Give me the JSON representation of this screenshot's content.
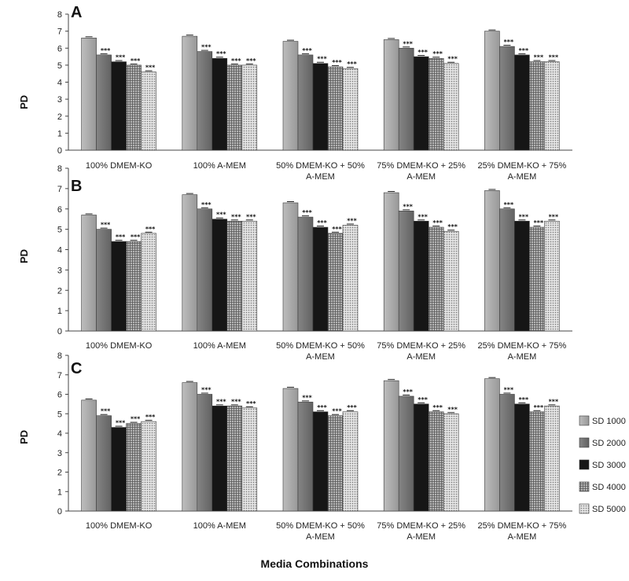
{
  "x_title": "Media Combinations",
  "chart_data": [
    {
      "type": "bar",
      "panel_label": "A",
      "ylabel": "PD",
      "ylim": [
        0,
        8
      ],
      "yticks": [
        0,
        1,
        2,
        3,
        4,
        5,
        6,
        7,
        8
      ],
      "categories": [
        [
          "100% DMEM-KO"
        ],
        [
          "100% A-MEM"
        ],
        [
          "50% DMEM-KO + 50%",
          "A-MEM"
        ],
        [
          "75% DMEM-KO + 25%",
          "A-MEM"
        ],
        [
          "25% DMEM-KO + 75%",
          "A-MEM"
        ]
      ],
      "series": [
        {
          "name": "SD 1000",
          "values": [
            6.6,
            6.7,
            6.4,
            6.5,
            7.0
          ],
          "sig": [
            "",
            "",
            "",
            "",
            ""
          ]
        },
        {
          "name": "SD 2000",
          "values": [
            5.6,
            5.8,
            5.6,
            6.0,
            6.1
          ],
          "sig": [
            "***",
            "***",
            "***",
            "***",
            "***"
          ]
        },
        {
          "name": "SD 3000",
          "values": [
            5.2,
            5.4,
            5.1,
            5.5,
            5.6
          ],
          "sig": [
            "***",
            "***",
            "***",
            "***",
            "***"
          ]
        },
        {
          "name": "SD 4000",
          "values": [
            5.0,
            5.0,
            4.9,
            5.4,
            5.2
          ],
          "sig": [
            "***",
            "***",
            "***",
            "***",
            "***"
          ]
        },
        {
          "name": "SD 5000",
          "values": [
            4.6,
            5.0,
            4.8,
            5.1,
            5.2
          ],
          "sig": [
            "***",
            "***",
            "***",
            "***",
            "***"
          ]
        }
      ],
      "grid": false
    },
    {
      "type": "bar",
      "panel_label": "B",
      "ylabel": "PD",
      "ylim": [
        0,
        8
      ],
      "yticks": [
        0,
        1,
        2,
        3,
        4,
        5,
        6,
        7,
        8
      ],
      "categories": [
        [
          "100% DMEM-KO"
        ],
        [
          "100% A-MEM"
        ],
        [
          "50% DMEM-KO + 50%",
          "A-MEM"
        ],
        [
          "75% DMEM-KO + 25%",
          "A-MEM"
        ],
        [
          "25% DMEM-KO + 75%",
          "A-MEM"
        ]
      ],
      "series": [
        {
          "name": "SD 1000",
          "values": [
            5.7,
            6.7,
            6.3,
            6.8,
            6.9
          ],
          "sig": [
            "",
            "",
            "",
            "",
            ""
          ]
        },
        {
          "name": "SD 2000",
          "values": [
            5.0,
            6.0,
            5.6,
            5.9,
            6.0
          ],
          "sig": [
            "***",
            "***",
            "***",
            "***",
            "***"
          ]
        },
        {
          "name": "SD 3000",
          "values": [
            4.4,
            5.5,
            5.1,
            5.4,
            5.4
          ],
          "sig": [
            "***",
            "***",
            "***",
            "***",
            "***"
          ]
        },
        {
          "name": "SD 4000",
          "values": [
            4.4,
            5.4,
            4.8,
            5.1,
            5.1
          ],
          "sig": [
            "***",
            "***",
            "***",
            "***",
            "***"
          ]
        },
        {
          "name": "SD 5000",
          "values": [
            4.8,
            5.4,
            5.2,
            4.9,
            5.4
          ],
          "sig": [
            "***",
            "***",
            "***",
            "***",
            "***"
          ]
        }
      ],
      "grid": false
    },
    {
      "type": "bar",
      "panel_label": "C",
      "ylabel": "PD",
      "ylim": [
        0,
        8
      ],
      "yticks": [
        0,
        1,
        2,
        3,
        4,
        5,
        6,
        7,
        8
      ],
      "categories": [
        [
          "100% DMEM-KO"
        ],
        [
          "100% A-MEM"
        ],
        [
          "50% DMEM-KO + 50%",
          "A-MEM"
        ],
        [
          "75% DMEM-KO + 25%",
          "A-MEM"
        ],
        [
          "25% DMEM-KO + 75%",
          "A-MEM"
        ]
      ],
      "series": [
        {
          "name": "SD 1000",
          "values": [
            5.7,
            6.6,
            6.3,
            6.7,
            6.8
          ],
          "sig": [
            "",
            "",
            "",
            "",
            ""
          ]
        },
        {
          "name": "SD 2000",
          "values": [
            4.9,
            6.0,
            5.6,
            5.9,
            6.0
          ],
          "sig": [
            "***",
            "***",
            "***",
            "***",
            "***"
          ]
        },
        {
          "name": "SD 3000",
          "values": [
            4.3,
            5.4,
            5.1,
            5.5,
            5.5
          ],
          "sig": [
            "***",
            "***",
            "***",
            "***",
            "***"
          ]
        },
        {
          "name": "SD 4000",
          "values": [
            4.5,
            5.4,
            4.9,
            5.1,
            5.1
          ],
          "sig": [
            "***",
            "***",
            "***",
            "***",
            "***"
          ]
        },
        {
          "name": "SD 5000",
          "values": [
            4.6,
            5.3,
            5.1,
            5.0,
            5.4
          ],
          "sig": [
            "***",
            "***",
            "***",
            "***",
            "***"
          ]
        }
      ],
      "grid": false
    }
  ],
  "legend": {
    "position": "right",
    "items": [
      "SD 1000",
      "SD 2000",
      "SD 3000",
      "SD 4000",
      "SD 5000"
    ],
    "colors": [
      "#a8a8a8",
      "#747474",
      "#161616",
      "#8e8e8e",
      "#cdcdcd"
    ]
  }
}
